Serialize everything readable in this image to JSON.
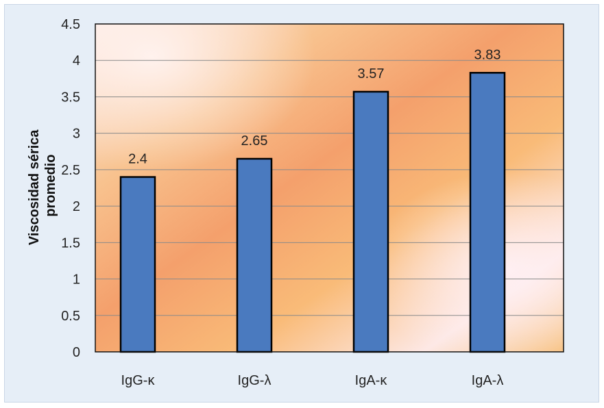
{
  "chart_data": {
    "type": "bar",
    "title": "",
    "xlabel": "",
    "ylabel_lines": [
      "Viscosidad sérica",
      "promedio"
    ],
    "categories": [
      "IgG-κ",
      "IgG-λ",
      "IgA-κ",
      "IgA-λ"
    ],
    "values": [
      2.4,
      2.65,
      3.57,
      3.83
    ],
    "data_labels": [
      "2.4",
      "2.65",
      "3.57",
      "3.83"
    ],
    "ylim": [
      0,
      4.5
    ],
    "yticks": [
      "0",
      "0.5",
      "1",
      "1.5",
      "2",
      "2.5",
      "3",
      "3.5",
      "4",
      "4.5"
    ],
    "grid": true,
    "bar_color": "#4a7abf",
    "bar_edge_color": "#000000"
  }
}
